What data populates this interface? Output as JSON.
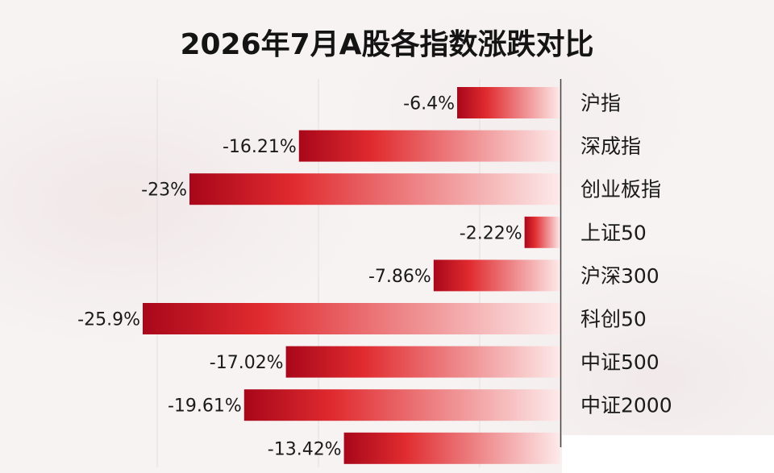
{
  "chart_data": {
    "type": "bar",
    "orientation": "horizontal",
    "title": "2026年7月A股各指数涨跌对比",
    "categories": [
      "沪指",
      "深成指",
      "创业板指",
      "上证50",
      "沪深300",
      "科创50",
      "中证500",
      "中证2000",
      ""
    ],
    "values": [
      -6.4,
      -16.21,
      -23,
      -2.22,
      -7.86,
      -25.9,
      -17.02,
      -19.61,
      -13.42
    ],
    "value_labels": [
      "-6.4%",
      "-16.21%",
      "-23%",
      "-2.22%",
      "-7.86%",
      "-25.9%",
      "-17.02%",
      "-19.61%",
      "-13.42%"
    ],
    "xlim": [
      -30,
      0
    ],
    "grid": true,
    "colors": {
      "bar_dark": "#a8071a",
      "bar_mid": "#e02b2f",
      "bar_light": "#fdeaea",
      "axis": "#444444"
    }
  }
}
